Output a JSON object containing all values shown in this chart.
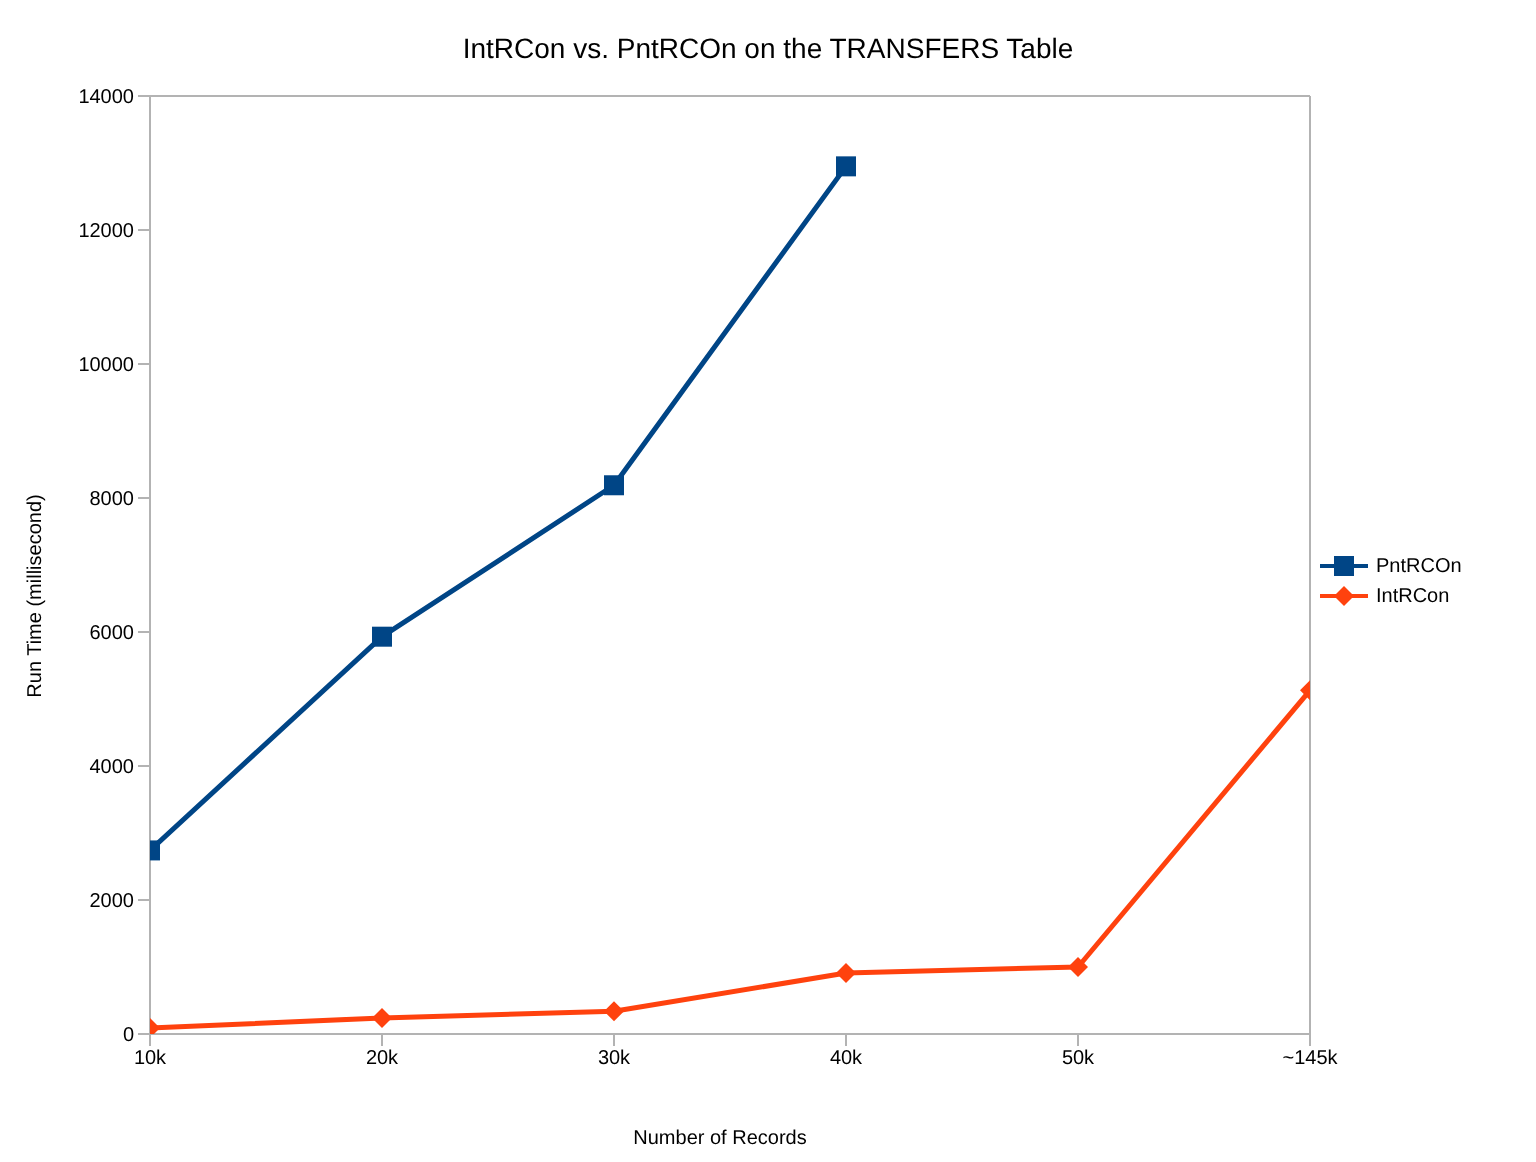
{
  "chart_data": {
    "type": "line",
    "title": "IntRCon vs. PntRCOn on the TRANSFERS Table",
    "xlabel": "Number of Records",
    "ylabel": "Run Time (millisecond)",
    "categories": [
      "10k",
      "20k",
      "30k",
      "40k",
      "50k",
      "~145k"
    ],
    "series": [
      {
        "name": "PntRCOn",
        "color": "#004586",
        "marker": "square",
        "values": [
          2740,
          5930,
          8190,
          12950,
          null,
          null
        ]
      },
      {
        "name": "IntRCon",
        "color": "#ff420e",
        "marker": "diamond",
        "values": [
          90,
          240,
          340,
          910,
          1000,
          5130
        ]
      }
    ],
    "ylim": [
      0,
      14000
    ],
    "yticks": [
      0,
      2000,
      4000,
      6000,
      8000,
      10000,
      12000,
      14000
    ],
    "grid": false,
    "legend": "right",
    "line_style": "solid"
  }
}
